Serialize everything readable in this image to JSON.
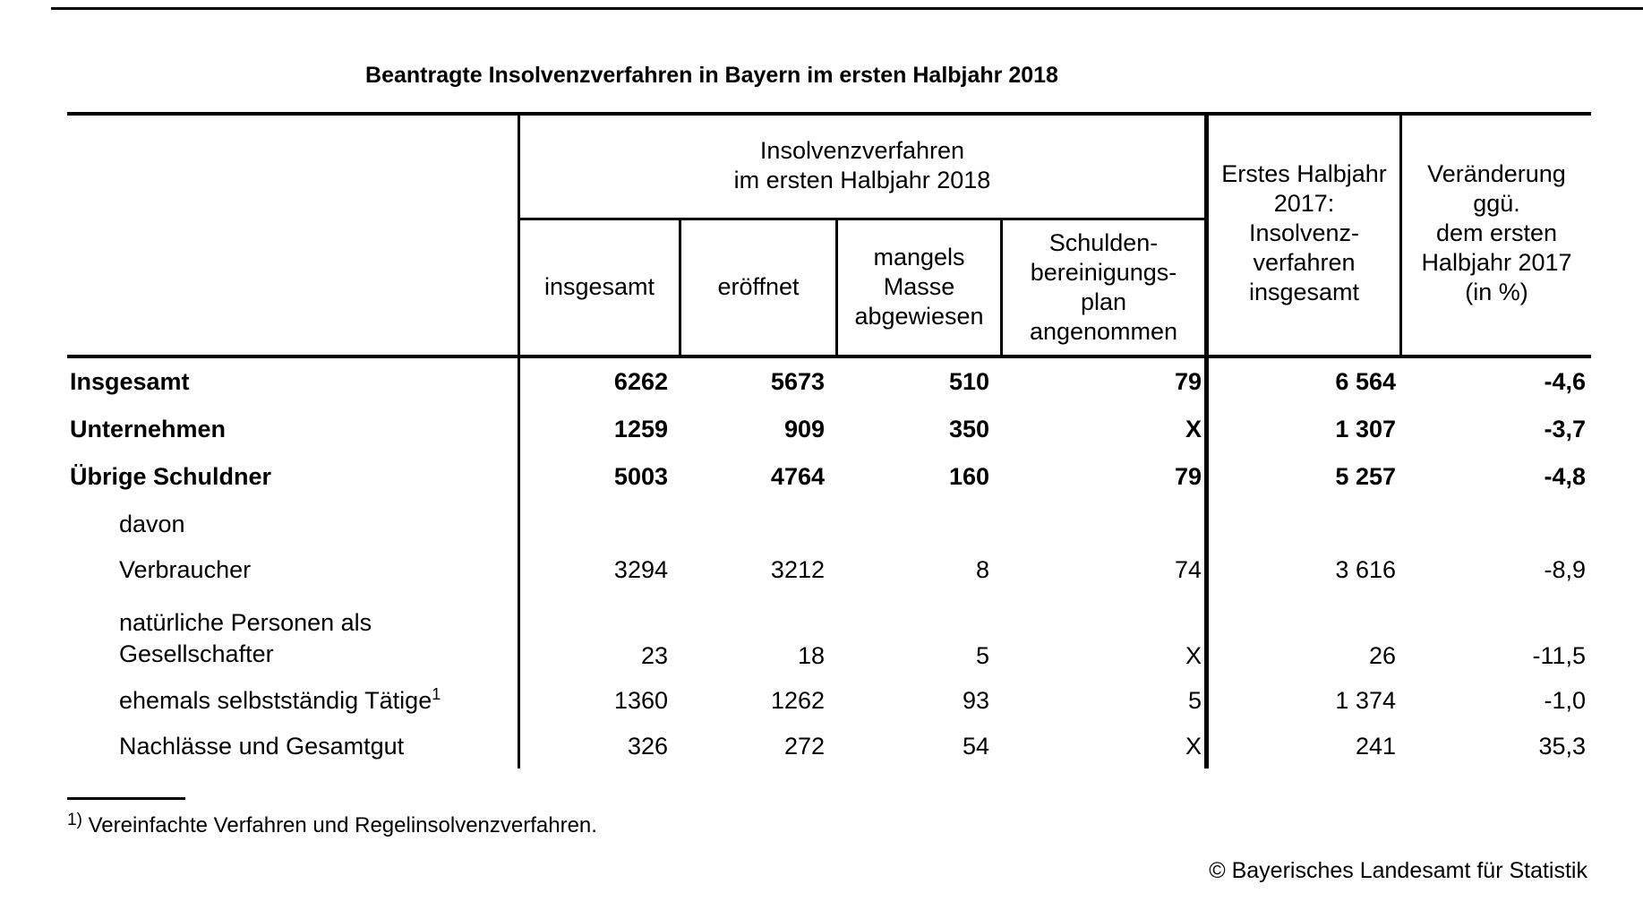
{
  "title": "Beantragte Insolvenzverfahren in Bayern im ersten Halbjahr 2018",
  "table": {
    "group_header": "Insolvenzverfahren\nim ersten Halbjahr 2018",
    "sub_headers": [
      "insgesamt",
      "eröffnet",
      "mangels\nMasse\nabgewiesen",
      "Schulden-\nbereinigungs-\nplan\nangenommen"
    ],
    "right_headers": [
      "Erstes Halbjahr\n2017:\nInsolvenz-\nverfahren\ninsgesamt",
      "Veränderung\nggü.\ndem ersten\nHalbjahr 2017\n(in %)"
    ],
    "rows": [
      {
        "label": "Insgesamt",
        "values": [
          "6262",
          "5673",
          "510",
          "79",
          "6 564",
          "-4,6"
        ]
      },
      {
        "label": "Unternehmen",
        "values": [
          "1259",
          "909",
          "350",
          "X",
          "1 307",
          "-3,7"
        ]
      },
      {
        "label": "Übrige Schuldner",
        "values": [
          "5003",
          "4764",
          "160",
          "79",
          "5 257",
          "-4,8"
        ]
      },
      {
        "label": "davon",
        "values": [
          "",
          "",
          "",
          "",
          "",
          ""
        ]
      },
      {
        "label": "Verbraucher",
        "values": [
          "3294",
          "3212",
          "8",
          "74",
          "3 616",
          "-8,9"
        ]
      },
      {
        "label": "natürliche Personen als\nGesellschafter",
        "values": [
          "23",
          "18",
          "5",
          "X",
          "26",
          "-11,5"
        ]
      },
      {
        "label": "ehemals selbstständig Tätige",
        "sup": "1",
        "values": [
          "1360",
          "1262",
          "93",
          "5",
          "1 374",
          "-1,0"
        ]
      },
      {
        "label": "Nachlässe und Gesamtgut",
        "values": [
          "326",
          "272",
          "54",
          "X",
          "241",
          "35,3"
        ]
      }
    ]
  },
  "footnote": {
    "marker": "1)",
    "text": "Vereinfachte Verfahren und Regelinsolvenzverfahren."
  },
  "copyright": "© Bayerisches Landesamt für Statistik"
}
